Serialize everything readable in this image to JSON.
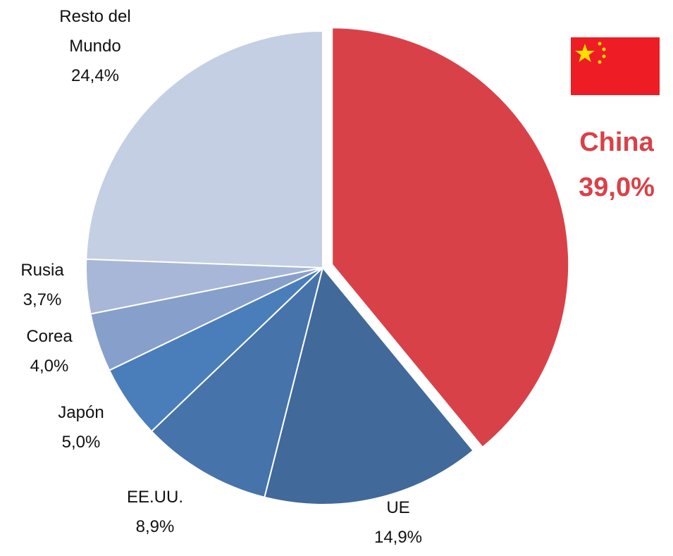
{
  "chart_data": {
    "type": "pie",
    "categories": [
      "China",
      "UE",
      "EE.UU.",
      "Japón",
      "Corea",
      "Rusia",
      "Resto del Mundo"
    ],
    "values": [
      39.0,
      14.9,
      8.9,
      5.0,
      4.0,
      3.7,
      24.4
    ],
    "value_labels": [
      "39,0%",
      "14,9%",
      "8,9%",
      "5,0%",
      "4,0%",
      "3,7%",
      "24,4%"
    ],
    "colors": [
      "#d94148",
      "#41699a",
      "#4673aa",
      "#4a7ebb",
      "#879fcb",
      "#a8b7d7",
      "#c4cfe3"
    ]
  }
}
